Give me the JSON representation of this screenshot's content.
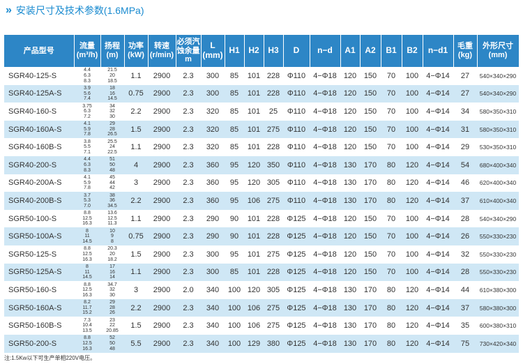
{
  "header": {
    "chevrons": "»",
    "title": "安装尺寸及技术参数(1.6MPa)"
  },
  "columns": [
    "产品型号",
    "流量 (m³/h)",
    "扬程 (m)",
    "功率 (kW)",
    "转速 (r/min)",
    "必须汽蚀余量m",
    "L (mm)",
    "H1",
    "H2",
    "H3",
    "D",
    "n−d",
    "A1",
    "A2",
    "B1",
    "B2",
    "n−d1",
    "毛重 (kg)",
    "外形尺寸 (mm)"
  ],
  "rows": [
    {
      "model": "SGR40-125-S",
      "flow": [
        "4.4",
        "6.3",
        "8.3"
      ],
      "head": [
        "21.5",
        "20",
        "18.5"
      ],
      "power": "1.1",
      "speed": "2900",
      "npsh": "2.3",
      "L": "300",
      "H1": "85",
      "H2": "101",
      "H3": "228",
      "D": "Φ110",
      "nd": "4−Φ18",
      "A1": "120",
      "A2": "150",
      "B1": "70",
      "B2": "100",
      "nd1": "4−Φ14",
      "weight": "27",
      "dims": "540×340×290"
    },
    {
      "model": "SGR40-125A-S",
      "flow": [
        "3.9",
        "5.6",
        "7.4"
      ],
      "head": [
        "18",
        "16",
        "14.5"
      ],
      "power": "0.75",
      "speed": "2900",
      "npsh": "2.3",
      "L": "300",
      "H1": "85",
      "H2": "101",
      "H3": "228",
      "D": "Φ110",
      "nd": "4−Φ18",
      "A1": "120",
      "A2": "150",
      "B1": "70",
      "B2": "100",
      "nd1": "4−Φ14",
      "weight": "27",
      "dims": "540×340×290"
    },
    {
      "model": "SGR40-160-S",
      "flow": [
        "3.75",
        "6.3",
        "7.2"
      ],
      "head": [
        "34",
        "32",
        "30"
      ],
      "power": "2.2",
      "speed": "2900",
      "npsh": "2.3",
      "L": "320",
      "H1": "85",
      "H2": "101",
      "H3": "25",
      "D": "Φ110",
      "nd": "4−Φ18",
      "A1": "120",
      "A2": "150",
      "B1": "70",
      "B2": "100",
      "nd1": "4−Φ14",
      "weight": "34",
      "dims": "580×350×310"
    },
    {
      "model": "SGR40-160A-S",
      "flow": [
        "4.1",
        "5.9",
        "7.8"
      ],
      "head": [
        "29",
        "28",
        "26.5"
      ],
      "power": "1.5",
      "speed": "2900",
      "npsh": "2.3",
      "L": "320",
      "H1": "85",
      "H2": "101",
      "H3": "275",
      "D": "Φ110",
      "nd": "4−Φ18",
      "A1": "120",
      "A2": "150",
      "B1": "70",
      "B2": "100",
      "nd1": "4−Φ14",
      "weight": "31",
      "dims": "580×350×310"
    },
    {
      "model": "SGR40-160B-S",
      "flow": [
        "3.8",
        "5.5",
        "7.1"
      ],
      "head": [
        "25.5",
        "24",
        "22.5"
      ],
      "power": "1.1",
      "speed": "2900",
      "npsh": "2.3",
      "L": "320",
      "H1": "85",
      "H2": "101",
      "H3": "228",
      "D": "Φ110",
      "nd": "4−Φ18",
      "A1": "120",
      "A2": "150",
      "B1": "70",
      "B2": "100",
      "nd1": "4−Φ14",
      "weight": "29",
      "dims": "530×350×310"
    },
    {
      "model": "SGR40-200-S",
      "flow": [
        "4.4",
        "6.3",
        "8.3"
      ],
      "head": [
        "51",
        "50",
        "48"
      ],
      "power": "4",
      "speed": "2900",
      "npsh": "2.3",
      "L": "360",
      "H1": "95",
      "H2": "120",
      "H3": "350",
      "D": "Φ110",
      "nd": "4−Φ18",
      "A1": "130",
      "A2": "170",
      "B1": "80",
      "B2": "120",
      "nd1": "4−Φ14",
      "weight": "54",
      "dims": "680×400×340"
    },
    {
      "model": "SGR40-200A-S",
      "flow": [
        "4.1",
        "5.9",
        "7.8"
      ],
      "head": [
        "45",
        "44",
        "42"
      ],
      "power": "3",
      "speed": "2900",
      "npsh": "2.3",
      "L": "360",
      "H1": "95",
      "H2": "120",
      "H3": "305",
      "D": "Φ110",
      "nd": "4−Φ18",
      "A1": "130",
      "A2": "170",
      "B1": "80",
      "B2": "120",
      "nd1": "4−Φ14",
      "weight": "46",
      "dims": "620×400×340"
    },
    {
      "model": "SGR40-200B-S",
      "flow": [
        "3.7",
        "5.3",
        "7.0"
      ],
      "head": [
        "38",
        "36",
        "34.5"
      ],
      "power": "2.2",
      "speed": "2900",
      "npsh": "2.3",
      "L": "360",
      "H1": "95",
      "H2": "106",
      "H3": "275",
      "D": "Φ110",
      "nd": "4−Φ18",
      "A1": "130",
      "A2": "170",
      "B1": "80",
      "B2": "120",
      "nd1": "4−Φ14",
      "weight": "37",
      "dims": "610×400×340"
    },
    {
      "model": "SGR50-100-S",
      "flow": [
        "8.8",
        "12.5",
        "16.3"
      ],
      "head": [
        "13.6",
        "12.5",
        "11.3"
      ],
      "power": "1.1",
      "speed": "2900",
      "npsh": "2.3",
      "L": "290",
      "H1": "90",
      "H2": "101",
      "H3": "228",
      "D": "Φ125",
      "nd": "4−Φ18",
      "A1": "120",
      "A2": "150",
      "B1": "70",
      "B2": "100",
      "nd1": "4−Φ14",
      "weight": "28",
      "dims": "540×340×290"
    },
    {
      "model": "SGR50-100A-S",
      "flow": [
        "8",
        "11",
        "14.5"
      ],
      "head": [
        "10",
        "9",
        "8"
      ],
      "power": "0.75",
      "speed": "2900",
      "npsh": "2.3",
      "L": "290",
      "H1": "90",
      "H2": "101",
      "H3": "228",
      "D": "Φ125",
      "nd": "4−Φ18",
      "A1": "120",
      "A2": "150",
      "B1": "70",
      "B2": "100",
      "nd1": "4−Φ14",
      "weight": "26",
      "dims": "550×330×230"
    },
    {
      "model": "SGR50-125-S",
      "flow": [
        "8.8",
        "12.5",
        "16.3"
      ],
      "head": [
        "20.3",
        "20",
        "18.2"
      ],
      "power": "1.5",
      "speed": "2900",
      "npsh": "2.3",
      "L": "300",
      "H1": "95",
      "H2": "101",
      "H3": "275",
      "D": "Φ125",
      "nd": "4−Φ18",
      "A1": "120",
      "A2": "150",
      "B1": "70",
      "B2": "100",
      "nd1": "4−Φ14",
      "weight": "32",
      "dims": "550×330×230"
    },
    {
      "model": "SGR50-125A-S",
      "flow": [
        "8",
        "11",
        "14.5"
      ],
      "head": [
        "17",
        "16",
        "14"
      ],
      "power": "1.1",
      "speed": "2900",
      "npsh": "2.3",
      "L": "300",
      "H1": "85",
      "H2": "101",
      "H3": "228",
      "D": "Φ125",
      "nd": "4−Φ18",
      "A1": "120",
      "A2": "150",
      "B1": "70",
      "B2": "100",
      "nd1": "4−Φ14",
      "weight": "28",
      "dims": "550×330×230"
    },
    {
      "model": "SGR50-160-S",
      "flow": [
        "8.8",
        "12.5",
        "16.3"
      ],
      "head": [
        "34.7",
        "32",
        "30"
      ],
      "power": "3",
      "speed": "2900",
      "npsh": "2.0",
      "L": "340",
      "H1": "100",
      "H2": "120",
      "H3": "305",
      "D": "Φ125",
      "nd": "4−Φ18",
      "A1": "130",
      "A2": "170",
      "B1": "80",
      "B2": "120",
      "nd1": "4−Φ14",
      "weight": "44",
      "dims": "610×380×300"
    },
    {
      "model": "SGR50-160A-S",
      "flow": [
        "8.2",
        "11.7",
        "15.2"
      ],
      "head": [
        "29",
        "28",
        "26"
      ],
      "power": "2.2",
      "speed": "2900",
      "npsh": "2.3",
      "L": "340",
      "H1": "100",
      "H2": "106",
      "H3": "275",
      "D": "Φ125",
      "nd": "4−Φ18",
      "A1": "130",
      "A2": "170",
      "B1": "80",
      "B2": "120",
      "nd1": "4−Φ14",
      "weight": "37",
      "dims": "580×380×300"
    },
    {
      "model": "SGR50-160B-S",
      "flow": [
        "7.3",
        "10.4",
        "13.5"
      ],
      "head": [
        "23",
        "22",
        "20.85"
      ],
      "power": "1.5",
      "speed": "2900",
      "npsh": "2.3",
      "L": "340",
      "H1": "100",
      "H2": "106",
      "H3": "275",
      "D": "Φ125",
      "nd": "4−Φ18",
      "A1": "130",
      "A2": "170",
      "B1": "80",
      "B2": "120",
      "nd1": "4−Φ14",
      "weight": "35",
      "dims": "600×380×310"
    },
    {
      "model": "SGR50-200-S",
      "flow": [
        "8.8",
        "12.5",
        "16.3"
      ],
      "head": [
        "52",
        "50",
        "48"
      ],
      "power": "5.5",
      "speed": "2900",
      "npsh": "2.3",
      "L": "340",
      "H1": "100",
      "H2": "129",
      "H3": "380",
      "D": "Φ125",
      "nd": "4−Φ18",
      "A1": "130",
      "A2": "170",
      "B1": "80",
      "B2": "120",
      "nd1": "4−Φ14",
      "weight": "75",
      "dims": "730×420×340"
    }
  ],
  "note": "注:1.5Kw以下可生产单相220V电压。"
}
